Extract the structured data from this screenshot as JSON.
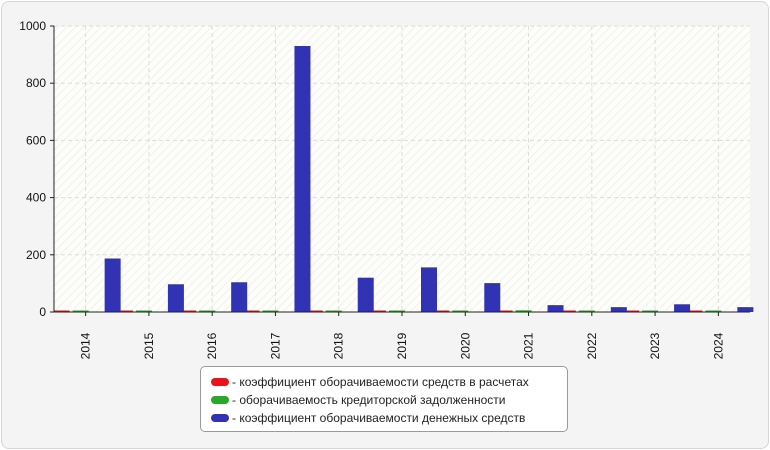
{
  "chart_data": {
    "type": "bar",
    "categories": [
      "2014",
      "2015",
      "2016",
      "2017",
      "2018",
      "2019",
      "2020",
      "2021",
      "2022",
      "2023",
      "2024"
    ],
    "series": [
      {
        "name": "- коэффициент оборачиваемости средств в расчетах",
        "color": "#e8141a",
        "values": [
          3,
          3,
          3,
          3,
          3,
          3,
          3,
          3,
          3,
          3,
          3
        ]
      },
      {
        "name": "- оборачиваемость кредиторской задолженности",
        "color": "#2aa82a",
        "values": [
          3,
          3,
          3,
          3,
          3,
          3,
          3,
          6,
          3,
          3,
          3
        ]
      },
      {
        "name": "- коэффициент оборачиваемости денежных средств",
        "color": "#3232b4",
        "values": [
          187,
          97,
          104,
          930,
          120,
          156,
          101,
          24,
          17,
          27,
          17
        ]
      }
    ],
    "ylim": [
      0,
      1000
    ],
    "yticks": [
      "0",
      "200",
      "400",
      "600",
      "800",
      "1000"
    ],
    "grid": true,
    "legend_position": "bottom",
    "title": "",
    "xlabel": "",
    "ylabel": ""
  }
}
